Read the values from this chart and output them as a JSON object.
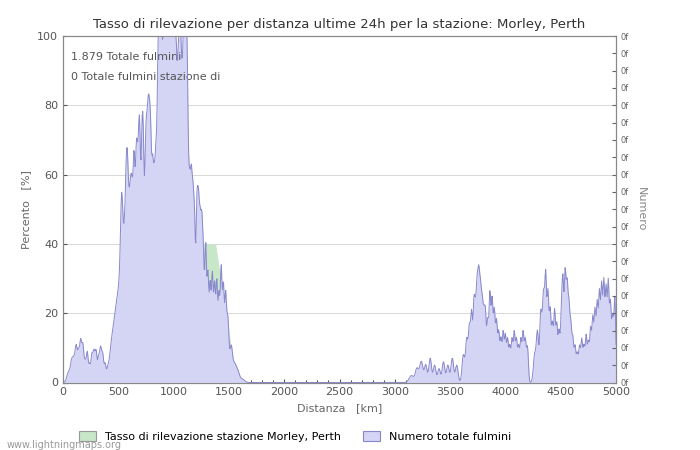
{
  "title": "Tasso di rilevazione per distanza ultime 24h per la stazione: Morley, Perth",
  "xlabel": "Distanza   [km]",
  "ylabel_left": "Percento   [%]",
  "ylabel_right": "Numero",
  "annotation_line1": "1.879 Totale fulmini",
  "annotation_line2": "0 Totale fulmini stazione di",
  "xlim": [
    0,
    5000
  ],
  "ylim": [
    0,
    100
  ],
  "xticks": [
    0,
    500,
    1000,
    1500,
    2000,
    2500,
    3000,
    3500,
    4000,
    4500,
    5000
  ],
  "yticks_left": [
    0,
    20,
    40,
    60,
    80,
    100
  ],
  "legend_label_green": "Tasso di rilevazione stazione Morley, Perth",
  "legend_label_blue": "Numero totale fulmini",
  "fill_color": "#d4d4f5",
  "fill_green_color": "#c8e6c8",
  "line_color": "#8888cc",
  "website": "www.lightningmaps.org",
  "background_color": "#ffffff",
  "grid_color": "#bbbbbb"
}
